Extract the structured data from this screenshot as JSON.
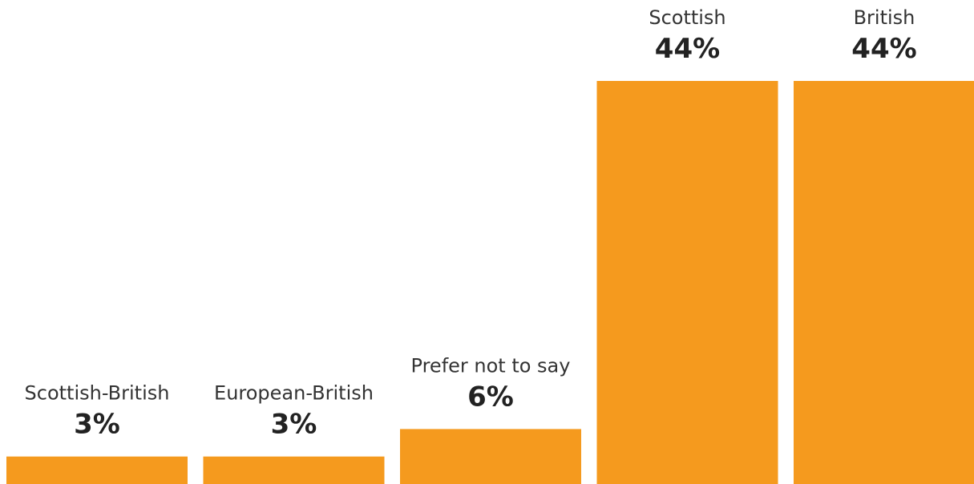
{
  "chart_data": {
    "type": "bar",
    "categories": [
      "Scottish-British",
      "European-British",
      "Prefer not to say",
      "Scottish",
      "British"
    ],
    "values": [
      3,
      3,
      6,
      44,
      44
    ],
    "value_labels": [
      "3%",
      "3%",
      "6%",
      "44%",
      "44%"
    ],
    "unit": "%",
    "ylim": [
      0,
      44
    ],
    "grid": false,
    "legend": "none",
    "bar_color": "#F59A1E"
  }
}
